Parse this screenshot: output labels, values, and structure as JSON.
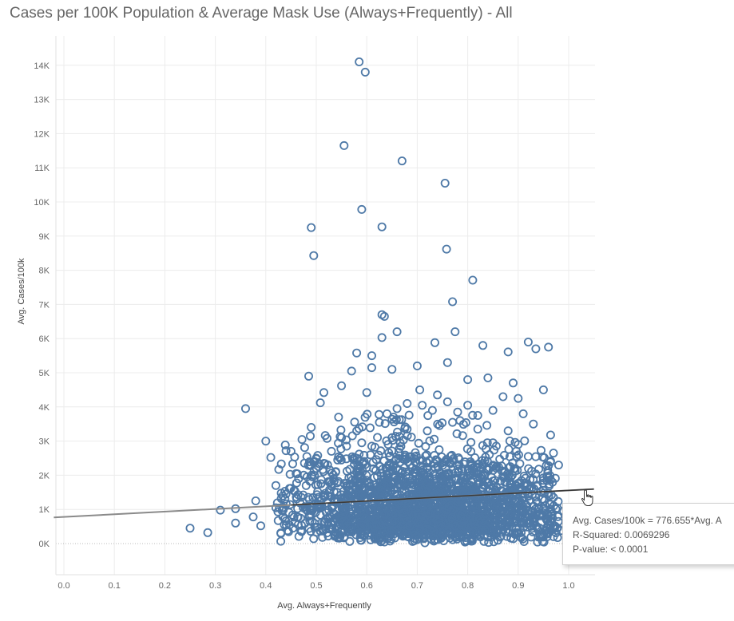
{
  "chart_data": {
    "type": "scatter",
    "title": "Cases per 100K Population & Average Mask Use (Always+Frequently) - All",
    "xlabel": "Avg. Always+Frequently",
    "ylabel": "Avg. Cases/100k",
    "xlim": [
      -0.02,
      1.05
    ],
    "ylim": [
      -900,
      14800
    ],
    "x_ticks": [
      0.0,
      0.1,
      0.2,
      0.3,
      0.4,
      0.5,
      0.6,
      0.7,
      0.8,
      0.9,
      1.0
    ],
    "x_tick_labels": [
      "0.0",
      "0.1",
      "0.2",
      "0.3",
      "0.4",
      "0.5",
      "0.6",
      "0.7",
      "0.8",
      "0.9",
      "1.0"
    ],
    "y_ticks": [
      0,
      1000,
      2000,
      3000,
      4000,
      5000,
      6000,
      7000,
      8000,
      9000,
      10000,
      11000,
      12000,
      13000,
      14000
    ],
    "y_tick_labels": [
      "0K",
      "1K",
      "2K",
      "3K",
      "4K",
      "5K",
      "6K",
      "7K",
      "8K",
      "9K",
      "10K",
      "11K",
      "12K",
      "13K",
      "14K"
    ],
    "grid": true,
    "marker_color": "#4e79a7",
    "trend_color": "#555555",
    "trend_line": {
      "intercept": 780,
      "slope": 776.655,
      "equation_text": "Avg. Cases/100k = 776.655*Avg. A",
      "r_squared_text": "R-Squared: 0.0069296",
      "p_value_text": "P-value: < 0.0001"
    },
    "points": [
      [
        0.585,
        14100
      ],
      [
        0.597,
        13800
      ],
      [
        0.555,
        11650
      ],
      [
        0.67,
        11200
      ],
      [
        0.755,
        10550
      ],
      [
        0.59,
        9780
      ],
      [
        0.49,
        9250
      ],
      [
        0.63,
        9270
      ],
      [
        0.495,
        8430
      ],
      [
        0.758,
        8620
      ],
      [
        0.81,
        7710
      ],
      [
        0.77,
        7080
      ],
      [
        0.63,
        6700
      ],
      [
        0.635,
        6650
      ],
      [
        0.63,
        6030
      ],
      [
        0.66,
        6200
      ],
      [
        0.775,
        6200
      ],
      [
        0.735,
        5880
      ],
      [
        0.58,
        5580
      ],
      [
        0.61,
        5500
      ],
      [
        0.83,
        5800
      ],
      [
        0.92,
        5900
      ],
      [
        0.96,
        5750
      ],
      [
        0.935,
        5700
      ],
      [
        0.88,
        5610
      ],
      [
        0.485,
        4900
      ],
      [
        0.57,
        5050
      ],
      [
        0.61,
        5150
      ],
      [
        0.65,
        5100
      ],
      [
        0.7,
        5200
      ],
      [
        0.76,
        5300
      ],
      [
        0.8,
        4800
      ],
      [
        0.84,
        4850
      ],
      [
        0.89,
        4700
      ],
      [
        0.95,
        4500
      ],
      [
        0.36,
        3950
      ],
      [
        0.515,
        4420
      ],
      [
        0.55,
        4620
      ],
      [
        0.6,
        4420
      ],
      [
        0.705,
        4500
      ],
      [
        0.49,
        3400
      ],
      [
        0.4,
        3000
      ],
      [
        0.41,
        2520
      ],
      [
        0.44,
        2720
      ],
      [
        0.45,
        2700
      ],
      [
        0.31,
        980
      ],
      [
        0.34,
        1020
      ],
      [
        0.25,
        450
      ],
      [
        0.285,
        320
      ],
      [
        0.34,
        600
      ],
      [
        0.38,
        1250
      ],
      [
        0.375,
        780
      ],
      [
        0.39,
        520
      ],
      [
        0.42,
        1700
      ],
      [
        0.42,
        1050
      ],
      [
        0.44,
        1450
      ],
      [
        0.46,
        2050
      ],
      [
        0.465,
        1900
      ],
      [
        0.5,
        2200
      ],
      [
        0.5,
        2500
      ],
      [
        0.53,
        2700
      ],
      [
        0.55,
        3100
      ],
      [
        0.56,
        2850
      ],
      [
        0.58,
        3300
      ],
      [
        0.59,
        2950
      ],
      [
        0.625,
        3550
      ],
      [
        0.64,
        3800
      ],
      [
        0.66,
        3950
      ],
      [
        0.68,
        4100
      ],
      [
        0.71,
        4050
      ],
      [
        0.73,
        3900
      ],
      [
        0.74,
        4350
      ],
      [
        0.76,
        4150
      ],
      [
        0.78,
        3850
      ],
      [
        0.8,
        4050
      ],
      [
        0.82,
        3750
      ],
      [
        0.85,
        3900
      ],
      [
        0.87,
        4300
      ],
      [
        0.9,
        4250
      ],
      [
        0.91,
        3800
      ],
      [
        0.93,
        3500
      ],
      [
        0.88,
        3300
      ],
      [
        0.82,
        3350
      ],
      [
        0.77,
        3550
      ],
      [
        0.72,
        3300
      ],
      [
        0.68,
        3350
      ],
      [
        0.65,
        3100
      ],
      [
        0.61,
        2850
      ],
      [
        0.97,
        2650
      ],
      [
        0.98,
        2300
      ],
      [
        0.96,
        2280
      ],
      [
        0.95,
        1850
      ],
      [
        0.97,
        1350
      ],
      [
        0.99,
        950
      ],
      [
        0.985,
        380
      ],
      [
        0.97,
        200
      ],
      [
        0.95,
        800
      ],
      [
        0.9,
        2900
      ],
      [
        0.92,
        2550
      ],
      [
        0.85,
        2950
      ]
    ],
    "cloud": {
      "count": 2300,
      "x_range": [
        0.42,
        0.98
      ],
      "note": ""
    }
  },
  "tooltip": {
    "line1": "Avg. Cases/100k = 776.655*Avg. A",
    "line2": "R-Squared: 0.0069296",
    "line3": "P-value: < 0.0001"
  }
}
